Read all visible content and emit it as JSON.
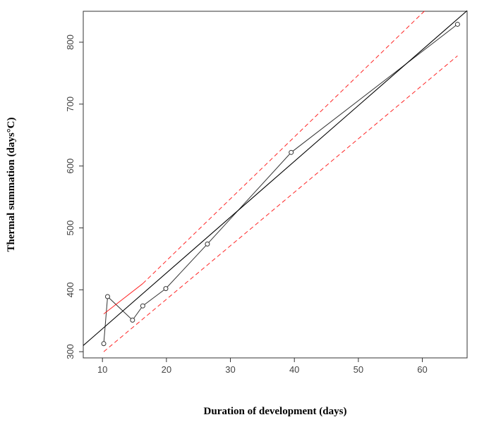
{
  "chart_data": {
    "type": "scatter",
    "xlabel": "Duration of development (days)",
    "ylabel": "Thermal summation (days°C)",
    "xlim": [
      7,
      67
    ],
    "ylim": [
      290,
      850
    ],
    "x_ticks": [
      10,
      20,
      30,
      40,
      50,
      60
    ],
    "y_ticks": [
      300,
      400,
      500,
      600,
      700,
      800
    ],
    "grid": false,
    "series": [
      {
        "kind": "connected-points",
        "color": "#333333",
        "points": [
          {
            "x": 10.2,
            "y": 313
          },
          {
            "x": 10.8,
            "y": 389
          },
          {
            "x": 14.7,
            "y": 351
          },
          {
            "x": 16.3,
            "y": 374
          },
          {
            "x": 19.9,
            "y": 402
          },
          {
            "x": 26.4,
            "y": 474
          },
          {
            "x": 39.5,
            "y": 622
          },
          {
            "x": 65.5,
            "y": 829
          }
        ]
      },
      {
        "kind": "regression-line",
        "color": "#000000",
        "points": [
          {
            "x": 7,
            "y": 310
          },
          {
            "x": 67,
            "y": 851
          }
        ]
      },
      {
        "kind": "upper-confidence-band",
        "color": "#ff0000",
        "dash": "dashed",
        "segments": [
          {
            "style": "solid",
            "points": [
              {
                "x": 10.2,
                "y": 361
              },
              {
                "x": 16.3,
                "y": 410
              }
            ]
          },
          {
            "style": "dashed",
            "points": [
              {
                "x": 16.3,
                "y": 410
              },
              {
                "x": 60.5,
                "y": 852
              }
            ]
          }
        ]
      },
      {
        "kind": "lower-confidence-band",
        "color": "#ff0000",
        "dash": "dashed",
        "segments": [
          {
            "style": "dashed",
            "points": [
              {
                "x": 10.2,
                "y": 300
              },
              {
                "x": 65.5,
                "y": 778
              }
            ]
          }
        ]
      }
    ]
  }
}
